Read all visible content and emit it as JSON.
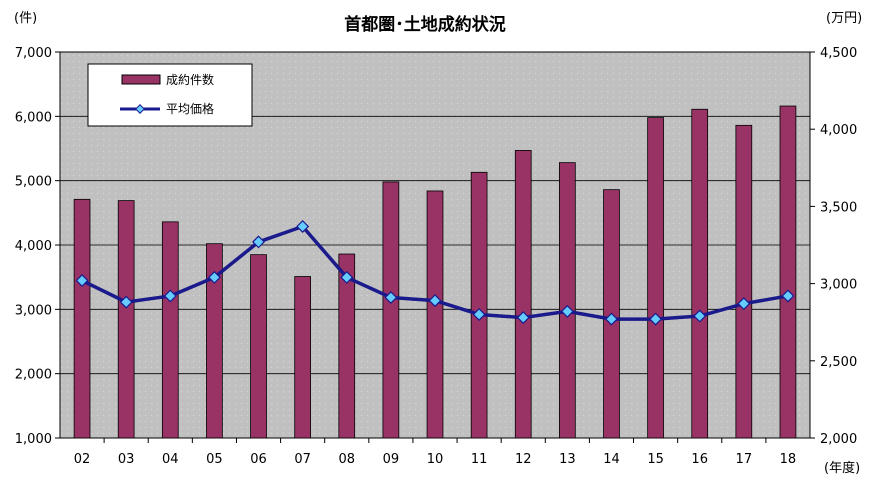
{
  "chart_data": {
    "type": "bar+line",
    "title": "首都圏･土地成約状況",
    "left_unit": "(件)",
    "right_unit": "(万円)",
    "x_unit": "(年度)",
    "categories": [
      "02",
      "03",
      "04",
      "05",
      "06",
      "07",
      "08",
      "09",
      "10",
      "11",
      "12",
      "13",
      "14",
      "15",
      "16",
      "17",
      "18"
    ],
    "series": [
      {
        "name": "成約件数",
        "type": "bar",
        "axis": "left",
        "color": "#993366",
        "values": [
          4710,
          4690,
          4360,
          4020,
          3850,
          3510,
          3860,
          4980,
          4840,
          5130,
          5470,
          5280,
          4860,
          5980,
          6110,
          5860,
          6160
        ]
      },
      {
        "name": "平均価格",
        "type": "line",
        "axis": "right",
        "color": "#1a1a8c",
        "marker_color": "#66ccff",
        "values": [
          3020,
          2880,
          2920,
          3040,
          3270,
          3370,
          3040,
          2910,
          2890,
          2800,
          2780,
          2820,
          2770,
          2770,
          2790,
          2870,
          2920
        ]
      }
    ],
    "y_left": {
      "min": 1000,
      "max": 7000,
      "step": 1000,
      "tick_labels": [
        "1,000",
        "2,000",
        "3,000",
        "4,000",
        "5,000",
        "6,000",
        "7,000"
      ]
    },
    "y_right": {
      "min": 2000,
      "max": 4500,
      "step": 500,
      "tick_labels": [
        "2,000",
        "2,500",
        "3,000",
        "3,500",
        "4,000",
        "4,500"
      ]
    },
    "plot_background": "#c0c0c0",
    "legend_position": "top-left",
    "grid": true
  }
}
